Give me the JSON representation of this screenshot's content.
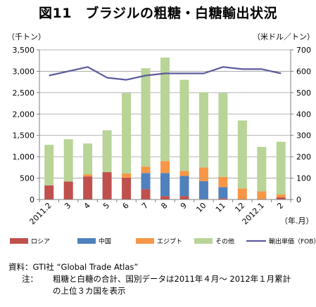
{
  "title": "図11　ブラジルの粗糖・白糖輸出状況",
  "notes": {
    "source": "資料：GTI社 “Global Trade Atlas”",
    "note_label": "注：",
    "note_line1": "粗糖と白糖の合計、国別データは2011年４月～ 2012年１月累計",
    "note_line2": "の上位３カ国を表示"
  },
  "colors": {
    "russia": "#c0504d",
    "china": "#4f81bd",
    "egypt": "#f79646",
    "other": "#b9d497",
    "price": "#5c5a9c",
    "grid": "#9d9d9d"
  },
  "chart_data": {
    "type": "bar",
    "stacked": true,
    "categories": [
      "2011.2",
      "3",
      "4",
      "5",
      "6",
      "7",
      "8",
      "9",
      "10",
      "11",
      "12",
      "2012.1",
      "2"
    ],
    "x_unit_label": "（年.月）",
    "y_left_unit": "（千トン）",
    "y_right_unit": "（米ドル／トン）",
    "ylim_left": [
      0,
      3500
    ],
    "ylim_right": [
      0,
      700
    ],
    "yticks_left": [
      "0",
      "500",
      "1,000",
      "1,500",
      "2,000",
      "2,500",
      "3,000",
      "3,500"
    ],
    "yticks_right": [
      "0",
      "100",
      "200",
      "300",
      "400",
      "500",
      "600",
      "700"
    ],
    "grid": true,
    "legend_position": "bottom",
    "series": [
      {
        "name": "ロシア",
        "color_key": "russia",
        "values": [
          330,
          420,
          540,
          640,
          510,
          240,
          80,
          80,
          10,
          30,
          0,
          0,
          50
        ]
      },
      {
        "name": "中国",
        "color_key": "china",
        "values": [
          0,
          0,
          0,
          0,
          0,
          380,
          540,
          470,
          420,
          260,
          0,
          0,
          0
        ]
      },
      {
        "name": "エジプト",
        "color_key": "egypt",
        "values": [
          0,
          0,
          50,
          0,
          100,
          150,
          280,
          120,
          320,
          240,
          260,
          190,
          70
        ]
      },
      {
        "name": "その他",
        "color_key": "other",
        "values": [
          950,
          990,
          720,
          980,
          1880,
          2300,
          2420,
          2130,
          1760,
          1960,
          1590,
          1040,
          1230
        ]
      }
    ],
    "line_series": {
      "name": "輸出単価（FOB）",
      "color_key": "price",
      "axis": "right",
      "values": [
        580,
        600,
        620,
        570,
        560,
        580,
        590,
        590,
        590,
        620,
        610,
        610,
        590
      ]
    }
  }
}
